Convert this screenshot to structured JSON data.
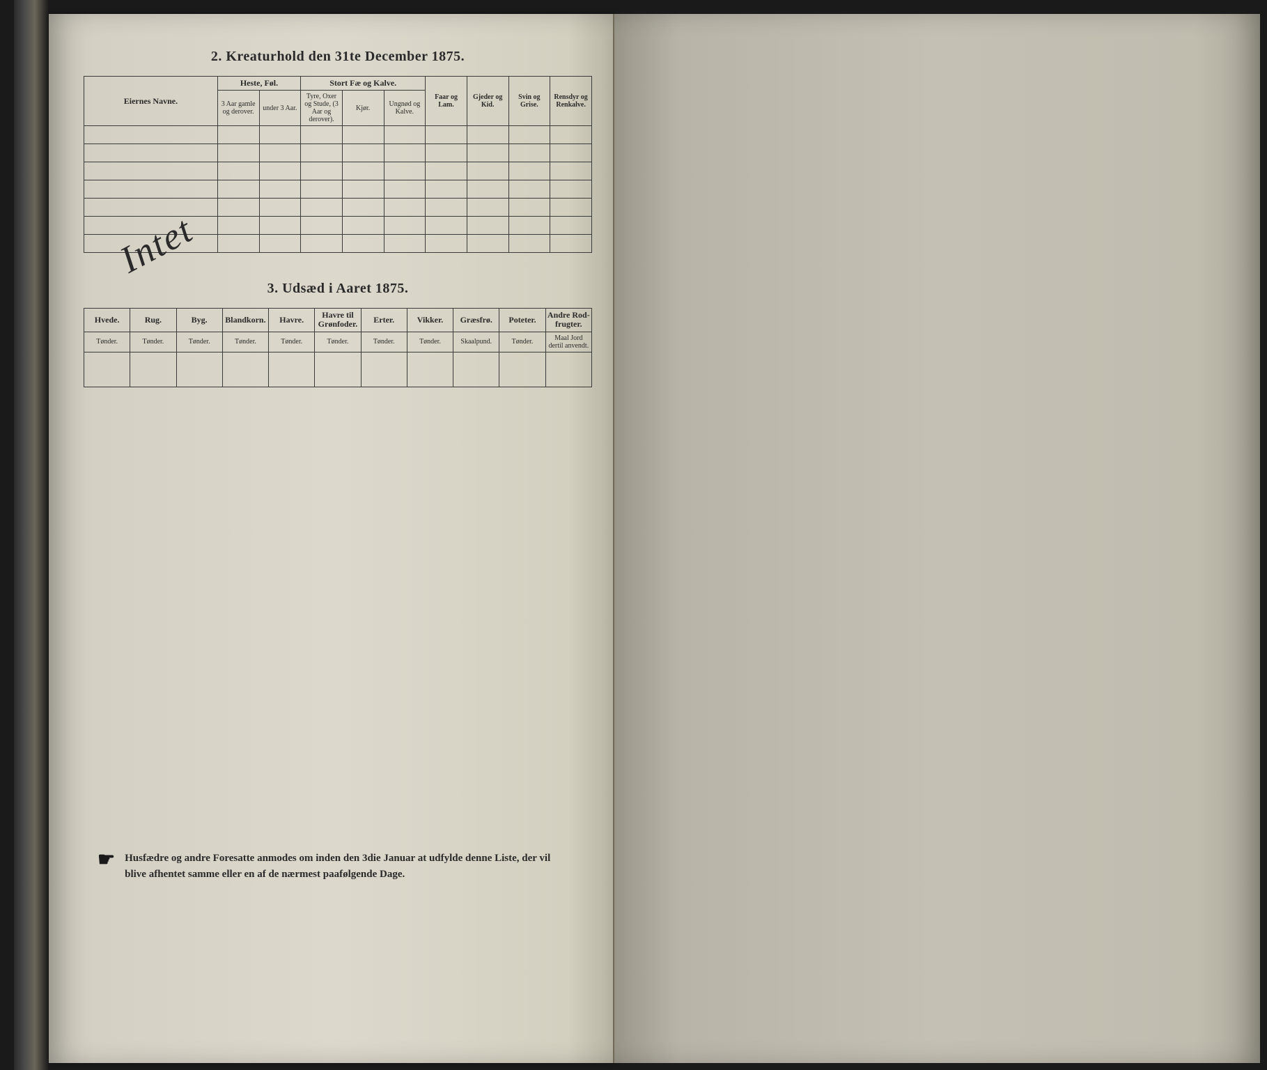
{
  "section2": {
    "title": "2.  Kreaturhold den 31te December 1875.",
    "col_owner": "Eiernes Navne.",
    "group_heste": "Heste, Føl.",
    "heste_a": "3 Aar gamle og derover.",
    "heste_b": "under 3 Aar.",
    "group_stort": "Stort Fæ og Kalve.",
    "stort_a": "Tyre, Oxer og Stude, (3 Aar og derover).",
    "stort_b": "Kjør.",
    "stort_c": "Ungnød og Kalve.",
    "col_faar": "Faar og Lam.",
    "col_gjeder": "Gjeder og Kid.",
    "col_svin": "Svin og Grise.",
    "col_rensdyr": "Rensdyr og Renkalve.",
    "handwritten": "Intet"
  },
  "section3": {
    "title": "3.  Udsæd i Aaret 1875.",
    "cols": [
      {
        "h": "Hvede.",
        "u": "Tønder."
      },
      {
        "h": "Rug.",
        "u": "Tønder."
      },
      {
        "h": "Byg.",
        "u": "Tønder."
      },
      {
        "h": "Blandkorn.",
        "u": "Tønder."
      },
      {
        "h": "Havre.",
        "u": "Tønder."
      },
      {
        "h": "Havre til Grønfoder.",
        "u": "Tønder."
      },
      {
        "h": "Erter.",
        "u": "Tønder."
      },
      {
        "h": "Vikker.",
        "u": "Tønder."
      },
      {
        "h": "Græsfrø.",
        "u": "Skaalpund."
      },
      {
        "h": "Poteter.",
        "u": "Tønder."
      },
      {
        "h": "Andre Rod-frugter.",
        "u": "Maal Jord dertil anvendt."
      }
    ]
  },
  "footer": {
    "text": "Husfædre og andre Foresatte anmodes om inden den 3die Januar at udfylde denne Liste, der vil blive afhentet samme eller en af de nærmest paafølgende Dage."
  }
}
